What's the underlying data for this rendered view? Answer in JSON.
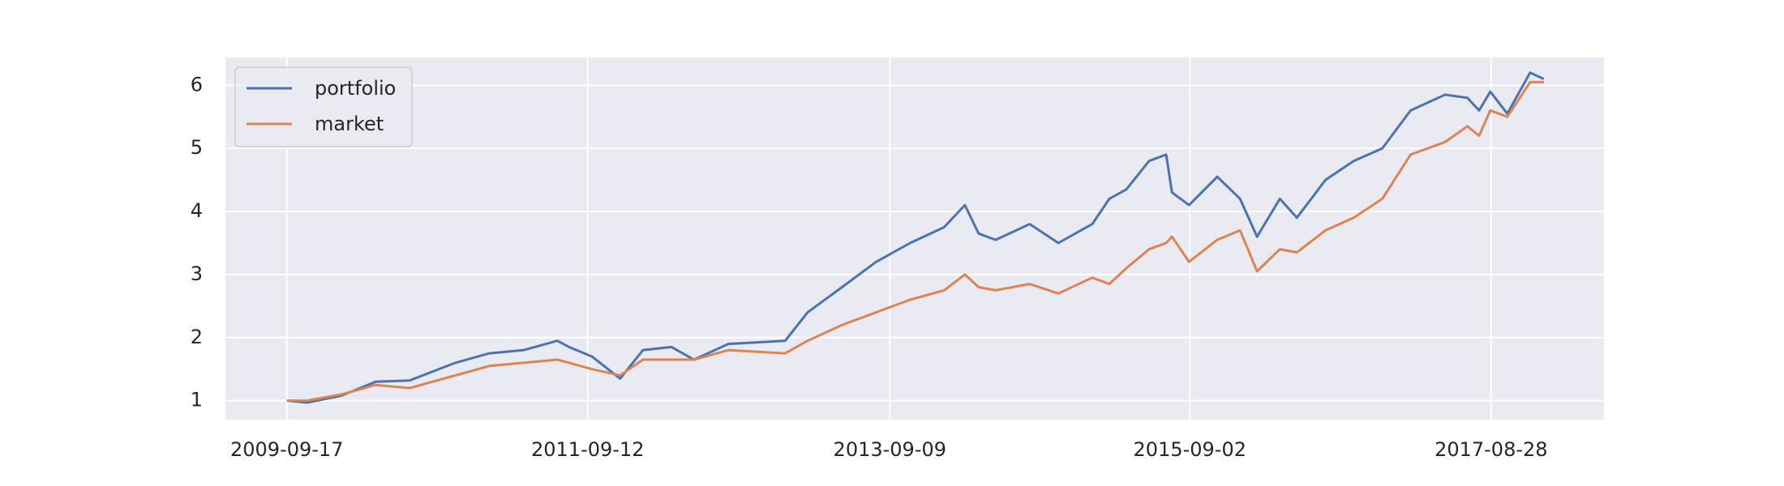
{
  "chart_data": {
    "type": "line",
    "x": [
      "2009-09-17",
      "2009-11-05",
      "2010-01-27",
      "2010-04-19",
      "2010-07-10",
      "2010-10-28",
      "2011-01-18",
      "2011-04-10",
      "2011-07-01",
      "2011-07-29",
      "2011-09-22",
      "2011-11-29",
      "2012-01-23",
      "2012-04-01",
      "2012-05-25",
      "2012-08-16",
      "2012-12-31",
      "2013-02-23",
      "2013-05-17",
      "2013-08-07",
      "2013-10-28",
      "2014-01-18",
      "2014-03-09",
      "2014-04-11",
      "2014-05-22",
      "2014-08-12",
      "2014-10-20",
      "2015-01-10",
      "2015-02-20",
      "2015-04-02",
      "2015-05-27",
      "2015-07-07",
      "2015-07-21",
      "2015-08-31",
      "2015-11-07",
      "2016-01-01",
      "2016-02-11",
      "2016-04-06",
      "2016-05-17",
      "2016-07-25",
      "2016-10-01",
      "2016-12-09",
      "2017-02-15",
      "2017-05-09",
      "2017-07-02",
      "2017-07-30",
      "2017-08-26",
      "2017-10-06",
      "2017-11-30",
      "2018-01-02"
    ],
    "series": [
      {
        "name": "portfolio",
        "color": "#4c72b0",
        "values": [
          1.0,
          0.97,
          1.08,
          1.3,
          1.32,
          1.6,
          1.75,
          1.8,
          1.95,
          1.85,
          1.7,
          1.35,
          1.8,
          1.85,
          1.65,
          1.9,
          1.95,
          2.4,
          2.8,
          3.2,
          3.5,
          3.75,
          4.1,
          3.65,
          3.55,
          3.8,
          3.5,
          3.8,
          4.2,
          4.35,
          4.8,
          4.9,
          4.3,
          4.1,
          4.55,
          4.2,
          3.6,
          4.2,
          3.9,
          4.5,
          4.8,
          5.0,
          5.6,
          5.85,
          5.8,
          5.6,
          5.9,
          5.55,
          6.2,
          6.1
        ]
      },
      {
        "name": "market",
        "color": "#dd8452",
        "values": [
          1.0,
          1.0,
          1.1,
          1.25,
          1.2,
          1.4,
          1.55,
          1.6,
          1.65,
          1.6,
          1.5,
          1.4,
          1.65,
          1.65,
          1.65,
          1.8,
          1.75,
          1.95,
          2.2,
          2.4,
          2.6,
          2.75,
          3.0,
          2.8,
          2.75,
          2.85,
          2.7,
          2.95,
          2.85,
          3.1,
          3.4,
          3.5,
          3.6,
          3.2,
          3.55,
          3.7,
          3.05,
          3.4,
          3.35,
          3.7,
          3.9,
          4.2,
          4.9,
          5.1,
          5.35,
          5.2,
          5.6,
          5.5,
          6.05,
          6.05
        ]
      }
    ],
    "xlim": [
      "2009-04-22",
      "2018-05-27"
    ],
    "xticks": [
      "2009-09-17",
      "2011-09-12",
      "2013-09-09",
      "2015-09-02",
      "2017-08-28"
    ],
    "ylim": [
      0.7,
      6.44
    ],
    "yticks": [
      1,
      2,
      3,
      4,
      5,
      6
    ],
    "grid": true,
    "legend": "upper left"
  }
}
